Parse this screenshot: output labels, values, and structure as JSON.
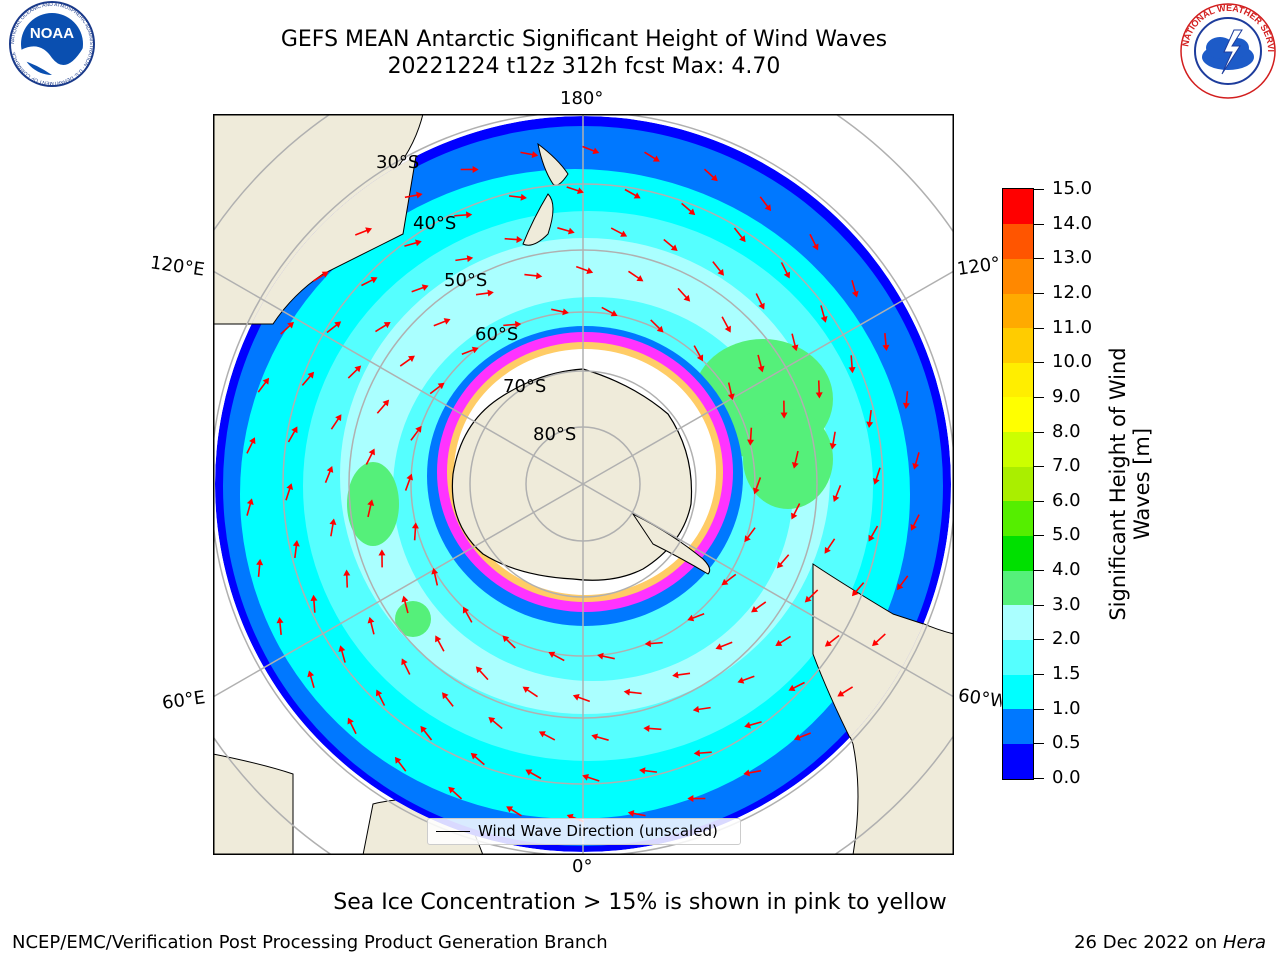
{
  "title": {
    "line1": "GEFS MEAN Antarctic Significant Height of Wind Waves",
    "line2": "20221224 t12z 312h fcst   Max: 4.70"
  },
  "logos": {
    "noaa_text": "NOAA",
    "noaa_ring_text": "NATIONAL OCEANIC AND ATMOSPHERIC ADMINISTRATION · U.S. DEPARTMENT OF COMMERCE",
    "nws_ring_text": "NATIONAL WEATHER SERVICE"
  },
  "map": {
    "projection": "south polar stereographic",
    "lon_labels": {
      "top": "180°",
      "bottom": "0°",
      "upper_left": "120°E",
      "lower_left": "60°E",
      "upper_right": "120°W",
      "lower_right": "60°W"
    },
    "lat_labels": [
      "30°S",
      "40°S",
      "50°S",
      "60°S",
      "70°S",
      "80°S"
    ],
    "colors": {
      "land": "#efebda",
      "ocean_0_0.5": "#0000ff",
      "ocean_0.5_1": "#0078ff",
      "ocean_1_1.5": "#00ffff",
      "ocean_1.5_2": "#55ffff",
      "ocean_2_3": "#aaffff",
      "ocean_3_4": "#55f07a",
      "sea_ice": "#ff33ff",
      "arrows": "#ff0000",
      "grid": "#b0b0b0"
    },
    "legend_label": "Wind Wave Direction (unscaled)"
  },
  "colorbar": {
    "label_line1": "Significant Height of Wind",
    "label_line2": "Waves [m]",
    "ticks": [
      "15.0",
      "14.0",
      "13.0",
      "12.0",
      "11.0",
      "10.0",
      "9.0",
      "8.0",
      "7.0",
      "6.0",
      "5.0",
      "4.0",
      "3.0",
      "2.0",
      "1.5",
      "1.0",
      "0.5",
      "0.0"
    ],
    "colors": [
      "#0000ff",
      "#0078ff",
      "#00ffff",
      "#55ffff",
      "#aaffff",
      "#55f07a",
      "#00e000",
      "#55ee00",
      "#aaee00",
      "#ccff00",
      "#ffff00",
      "#ffee00",
      "#ffcc00",
      "#ffaa00",
      "#ff8800",
      "#ff5500",
      "#ff0000"
    ]
  },
  "note": "Sea Ice Concentration > 15% is shown in pink to yellow",
  "footer": {
    "left": "NCEP/EMC/Verification Post Processing Product Generation Branch",
    "right_date": "26 Dec 2022 on ",
    "right_host": "Hera"
  }
}
